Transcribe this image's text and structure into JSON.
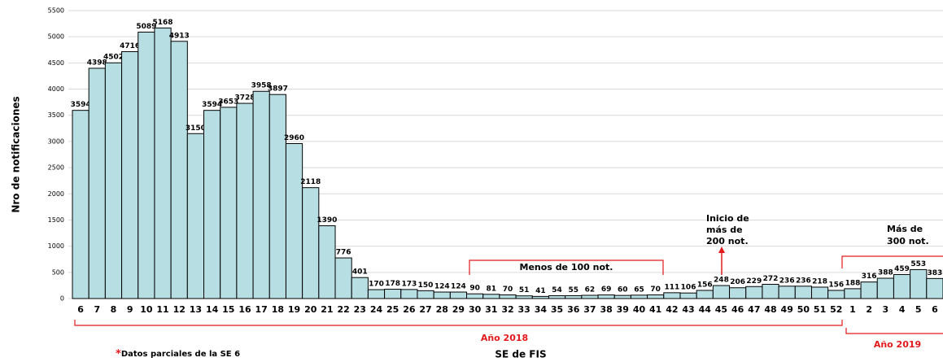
{
  "chart_data": {
    "type": "bar",
    "y_label": "Nro de notificaciones",
    "x_label": "SE de FIS",
    "categories": [
      "6",
      "7",
      "8",
      "9",
      "10",
      "11",
      "12",
      "13",
      "14",
      "15",
      "16",
      "17",
      "18",
      "19",
      "20",
      "21",
      "22",
      "23",
      "24",
      "25",
      "26",
      "27",
      "28",
      "29",
      "30",
      "31",
      "32",
      "33",
      "34",
      "35",
      "36",
      "37",
      "38",
      "39",
      "40",
      "41",
      "42",
      "43",
      "44",
      "45",
      "46",
      "47",
      "48",
      "49",
      "50",
      "51",
      "52",
      "1",
      "2",
      "3",
      "4",
      "5",
      "6"
    ],
    "values": [
      3594,
      4398,
      4502,
      4716,
      5089,
      5168,
      4913,
      3150,
      3594,
      3653,
      3728,
      3958,
      3897,
      2960,
      2118,
      1390,
      776,
      401,
      170,
      178,
      173,
      150,
      124,
      124,
      90,
      81,
      70,
      51,
      41,
      54,
      55,
      62,
      69,
      60,
      65,
      70,
      111,
      106,
      156,
      248,
      206,
      229,
      272,
      236,
      236,
      218,
      156,
      188,
      316,
      388,
      459,
      553,
      383
    ],
    "color": "#b7dfe3",
    "ylim": [
      0,
      5500
    ],
    "yticks": [
      0,
      500,
      1000,
      1500,
      2000,
      2500,
      3000,
      3500,
      4000,
      4500,
      5000,
      5500
    ],
    "grid": true,
    "annotations": {
      "below_100": "Menos de 100 not.",
      "above_200": [
        "Inicio de",
        "más de",
        "200 not."
      ],
      "above_300": [
        "Más de",
        "300 not."
      ],
      "year_2018": "Año 2018",
      "year_2019": "Año 2019",
      "footnote_marker": "*",
      "footnote": "Datos parciales de la SE 6"
    }
  }
}
